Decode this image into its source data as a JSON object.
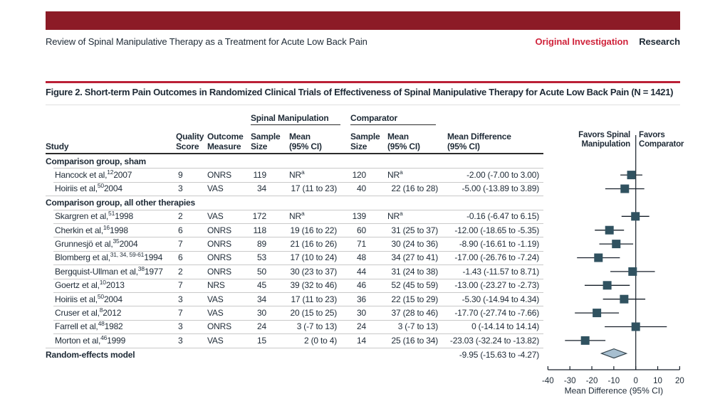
{
  "page": {
    "running_head": "Review of Spinal Manipulative Therapy as a Treatment for Acute Low Back Pain",
    "category_primary": "Original Investigation",
    "category_secondary": "Research"
  },
  "figure": {
    "title": "Figure 2. Short-term Pain Outcomes in Randomized Clinical Trials of Effectiveness of Spinal Manipulative Therapy for Acute Low Back Pain (N = 1421)"
  },
  "table": {
    "col_groups": [
      {
        "label": "Spinal Manipulation"
      },
      {
        "label": "Comparator"
      }
    ],
    "headers": {
      "study": "Study",
      "quality": [
        "Quality",
        "Score"
      ],
      "outcome": [
        "Outcome",
        "Measure"
      ],
      "sm_n": [
        "Sample",
        "Size"
      ],
      "sm_mean": [
        "Mean",
        "(95% CI)"
      ],
      "comp_n": [
        "Sample",
        "Size"
      ],
      "comp_mean": [
        "Mean",
        "(95% CI)"
      ],
      "md": [
        "Mean Difference",
        "(95% CI)"
      ]
    },
    "groups": [
      {
        "label": "Comparison group, sham",
        "rows": [
          {
            "study": "Hancock et al,^{12} 2007",
            "quality": "9",
            "outcome": "ONRS",
            "sm_n": "119",
            "sm_mean": "NR^{a}",
            "comp_n": "120",
            "comp_mean": "NR^{a}",
            "md": "-2.00 (-7.00 to 3.00)"
          },
          {
            "study": "Hoiriis et al,^{50} 2004",
            "quality": "3",
            "outcome": "VAS",
            "sm_n": "34",
            "sm_mean": "17 (11 to 23)",
            "comp_n": "40",
            "comp_mean": "22 (16 to 28)",
            "md": "-5.00 (-13.89 to 3.89)"
          }
        ]
      },
      {
        "label": "Comparison group, all other therapies",
        "rows": [
          {
            "study": "Skargren et al,^{51} 1998",
            "quality": "2",
            "outcome": "VAS",
            "sm_n": "172",
            "sm_mean": "NR^{a}",
            "comp_n": "139",
            "comp_mean": "NR^{a}",
            "md": "-0.16 (-6.47 to 6.15)"
          },
          {
            "study": "Cherkin et al,^{16} 1998",
            "quality": "6",
            "outcome": "ONRS",
            "sm_n": "118",
            "sm_mean": "19 (16 to 22)",
            "comp_n": "60",
            "comp_mean": "31 (25 to 37)",
            "md": "-12.00 (-18.65 to -5.35)"
          },
          {
            "study": "Grunnesjö et al,^{35} 2004",
            "quality": "7",
            "outcome": "ONRS",
            "sm_n": "89",
            "sm_mean": "21 (16 to 26)",
            "comp_n": "71",
            "comp_mean": "30 (24 to 36)",
            "md": "-8.90 (-16.61 to -1.19)"
          },
          {
            "study": "Blomberg et al,^{31, 34, 59-61} 1994",
            "quality": "6",
            "outcome": "ONRS",
            "sm_n": "53",
            "sm_mean": "17 (10 to 24)",
            "comp_n": "48",
            "comp_mean": "34 (27 to 41)",
            "md": "-17.00 (-26.76 to -7.24)"
          },
          {
            "study": "Bergquist-Ullman et al,^{38} 1977",
            "quality": "2",
            "outcome": "ONRS",
            "sm_n": "50",
            "sm_mean": "30 (23 to 37)",
            "comp_n": "44",
            "comp_mean": "31 (24 to 38)",
            "md": "-1.43 (-11.57 to 8.71)"
          },
          {
            "study": "Goertz et al,^{10} 2013",
            "quality": "7",
            "outcome": "NRS",
            "sm_n": "45",
            "sm_mean": "39 (32 to 46)",
            "comp_n": "46",
            "comp_mean": "52 (45 to 59)",
            "md": "-13.00 (-23.27 to -2.73)"
          },
          {
            "study": "Hoiriis et al,^{50} 2004",
            "quality": "3",
            "outcome": "VAS",
            "sm_n": "34",
            "sm_mean": "17 (11 to 23)",
            "comp_n": "36",
            "comp_mean": "22 (15 to 29)",
            "md": "-5.30 (-14.94 to 4.34)"
          },
          {
            "study": "Cruser et al,^{8} 2012",
            "quality": "7",
            "outcome": "VAS",
            "sm_n": "30",
            "sm_mean": "20 (15 to 25)",
            "comp_n": "30",
            "comp_mean": "37 (28 to 46)",
            "md": "-17.70 (-27.74 to -7.66)"
          },
          {
            "study": "Farrell et al,^{48} 1982",
            "quality": "3",
            "outcome": "ONRS",
            "sm_n": "24",
            "sm_mean": "3 (-7 to 13)",
            "comp_n": "24",
            "comp_mean": "3 (-7 to 13)",
            "md": "0 (-14.14 to 14.14)"
          },
          {
            "study": "Morton et al,^{46} 1999",
            "quality": "3",
            "outcome": "VAS",
            "sm_n": "15",
            "sm_mean": "2 (0 to 4)",
            "comp_n": "14",
            "comp_mean": "25 (16 to 34)",
            "md": "-23.03 (-32.24 to -13.82)"
          }
        ]
      }
    ],
    "summary": {
      "label": "Random-effects model",
      "md": "-9.95 (-15.63 to -4.27)"
    }
  },
  "chart_data": {
    "type": "forest",
    "title": "Short-term Pain Outcomes in Randomized Clinical Trials of Effectiveness of Spinal Manipulative Therapy for Acute Low Back Pain",
    "xlabel": "Mean Difference (95% CI)",
    "xlim": [
      -40,
      20
    ],
    "xticks": [
      -40,
      -30,
      -20,
      -10,
      0,
      10,
      20
    ],
    "zero_line": 0,
    "favors_left_lines": [
      "Favors Spinal",
      "Manipulation"
    ],
    "favors_right_lines": [
      "Favors",
      "Comparator"
    ],
    "groups": [
      {
        "name": "Comparison group, sham",
        "studies": [
          {
            "study": "Hancock et al, 2007",
            "ref": "12",
            "estimate": -2.0,
            "ci": [
              -7.0,
              3.0
            ]
          },
          {
            "study": "Hoiriis et al, 2004",
            "ref": "50",
            "estimate": -5.0,
            "ci": [
              -13.89,
              3.89
            ]
          }
        ]
      },
      {
        "name": "Comparison group, all other therapies",
        "studies": [
          {
            "study": "Skargren et al, 1998",
            "ref": "51",
            "estimate": -0.16,
            "ci": [
              -6.47,
              6.15
            ]
          },
          {
            "study": "Cherkin et al, 1998",
            "ref": "16",
            "estimate": -12.0,
            "ci": [
              -18.65,
              -5.35
            ]
          },
          {
            "study": "Grunnesjö et al, 2004",
            "ref": "35",
            "estimate": -8.9,
            "ci": [
              -16.61,
              -1.19
            ]
          },
          {
            "study": "Blomberg et al, 1994",
            "ref": "31, 34, 59-61",
            "estimate": -17.0,
            "ci": [
              -26.76,
              -7.24
            ]
          },
          {
            "study": "Bergquist-Ullman et al, 1977",
            "ref": "38",
            "estimate": -1.43,
            "ci": [
              -11.57,
              8.71
            ]
          },
          {
            "study": "Goertz et al, 2013",
            "ref": "10",
            "estimate": -13.0,
            "ci": [
              -23.27,
              -2.73
            ]
          },
          {
            "study": "Hoiriis et al, 2004",
            "ref": "50",
            "estimate": -5.3,
            "ci": [
              -14.94,
              4.34
            ]
          },
          {
            "study": "Cruser et al, 2012",
            "ref": "8",
            "estimate": -17.7,
            "ci": [
              -27.74,
              -7.66
            ]
          },
          {
            "study": "Farrell et al, 1982",
            "ref": "48",
            "estimate": 0,
            "ci": [
              -14.14,
              14.14
            ]
          },
          {
            "study": "Morton et al, 1999",
            "ref": "46",
            "estimate": -23.03,
            "ci": [
              -32.24,
              -13.82
            ]
          }
        ]
      }
    ],
    "summary": {
      "study": "Random-effects model",
      "estimate": -9.95,
      "ci": [
        -15.63,
        -4.27
      ]
    }
  },
  "colors": {
    "masthead_red": "#8c1b26",
    "rule_red": "#bb2036",
    "accent_red": "#d0243c",
    "text_dark": "#1e2a36",
    "marker": "#305260",
    "diamond_fill": "#a7bfd0",
    "diamond_border": "#37474f",
    "separator": "#c9c9c9"
  }
}
